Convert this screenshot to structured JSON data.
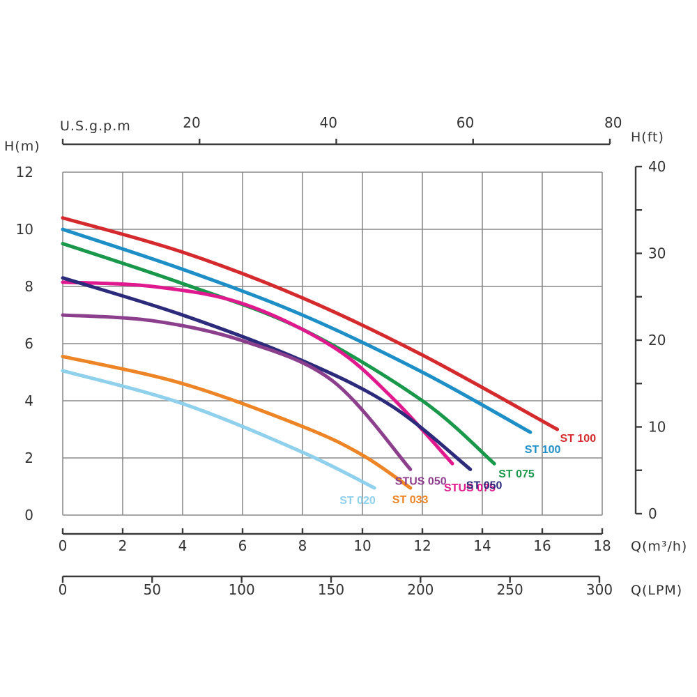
{
  "chart_data": {
    "type": "line",
    "x": {
      "label": "Q(m³/h)",
      "range": [
        0,
        18
      ],
      "ticks": [
        "0",
        "2",
        "4",
        "6",
        "8",
        "10",
        "12",
        "14",
        "16",
        "18"
      ]
    },
    "y": {
      "label": "H(m)",
      "range": [
        0,
        12
      ],
      "ticks": [
        "0",
        "2",
        "4",
        "6",
        "8",
        "10",
        "12"
      ]
    },
    "y2": {
      "label": "H(ft)",
      "range": [
        0,
        40
      ],
      "ticks": [
        "0",
        "10",
        "20",
        "30",
        "40"
      ]
    },
    "x_top": {
      "label": "U.S.g.p.m",
      "range": [
        0,
        80
      ],
      "ticks": [
        "20",
        "40",
        "60",
        "80"
      ]
    },
    "x_bottom2": {
      "label": "Q(LPM)",
      "range": [
        0,
        300
      ],
      "ticks": [
        "0",
        "50",
        "100",
        "150",
        "200",
        "250",
        "300"
      ]
    },
    "grid": true,
    "series": [
      {
        "name": "ST 100",
        "color": "#d42a2e",
        "label_color": "#d42a2e",
        "points": [
          [
            0,
            10.4
          ],
          [
            4,
            9.2
          ],
          [
            8,
            7.6
          ],
          [
            12,
            5.6
          ],
          [
            16.5,
            3.0
          ]
        ]
      },
      {
        "name": "ST 100",
        "color": "#1e8fc6",
        "label_color": "#1e8fc6",
        "points": [
          [
            0,
            10.0
          ],
          [
            4,
            8.6
          ],
          [
            8,
            7.0
          ],
          [
            12,
            5.0
          ],
          [
            15.6,
            2.9
          ]
        ]
      },
      {
        "name": "ST 075",
        "color": "#19974a",
        "label_color": "#19974a",
        "points": [
          [
            0,
            9.5
          ],
          [
            4,
            8.1
          ],
          [
            8,
            6.5
          ],
          [
            12,
            4.0
          ],
          [
            14.4,
            1.8
          ]
        ]
      },
      {
        "name": "STUS 075",
        "color": "#e0198e",
        "label_color": "#e0198e",
        "points": [
          [
            0,
            8.15
          ],
          [
            3,
            8.0
          ],
          [
            6,
            7.4
          ],
          [
            9,
            5.9
          ],
          [
            11,
            4.1
          ],
          [
            13,
            1.8
          ]
        ]
      },
      {
        "name": "ST 050",
        "color": "#2c2a7a",
        "label_color": "#2c2a7a",
        "points": [
          [
            0,
            8.3
          ],
          [
            4,
            7.0
          ],
          [
            8,
            5.4
          ],
          [
            11,
            3.8
          ],
          [
            13.6,
            1.6
          ]
        ]
      },
      {
        "name": "STUS 050",
        "color": "#8c3f8c",
        "label_color": "#8c3f8c",
        "points": [
          [
            0,
            7.0
          ],
          [
            3,
            6.8
          ],
          [
            6,
            6.1
          ],
          [
            9,
            4.7
          ],
          [
            11.6,
            1.6
          ]
        ]
      },
      {
        "name": "ST 033",
        "color": "#ed8526",
        "label_color": "#ed8526",
        "points": [
          [
            0,
            5.55
          ],
          [
            4,
            4.6
          ],
          [
            8,
            3.1
          ],
          [
            10,
            2.1
          ],
          [
            11.6,
            0.95
          ]
        ]
      },
      {
        "name": "ST 020",
        "color": "#8fd0ec",
        "label_color": "#8fd0ec",
        "points": [
          [
            0,
            5.05
          ],
          [
            4,
            3.9
          ],
          [
            8,
            2.2
          ],
          [
            10.4,
            0.95
          ]
        ]
      }
    ],
    "label_layout": [
      {
        "text": "ST 100",
        "series": 0
      },
      {
        "text": "ST 100",
        "series": 1
      },
      {
        "text": "ST 075",
        "series": 2
      },
      {
        "text": "STUS 075",
        "series": 3
      },
      {
        "text": "ST 050",
        "series": 4
      },
      {
        "text": "STUS 050",
        "series": 5
      },
      {
        "text": "ST 033",
        "series": 6
      },
      {
        "text": "ST 020",
        "series": 7
      }
    ]
  }
}
